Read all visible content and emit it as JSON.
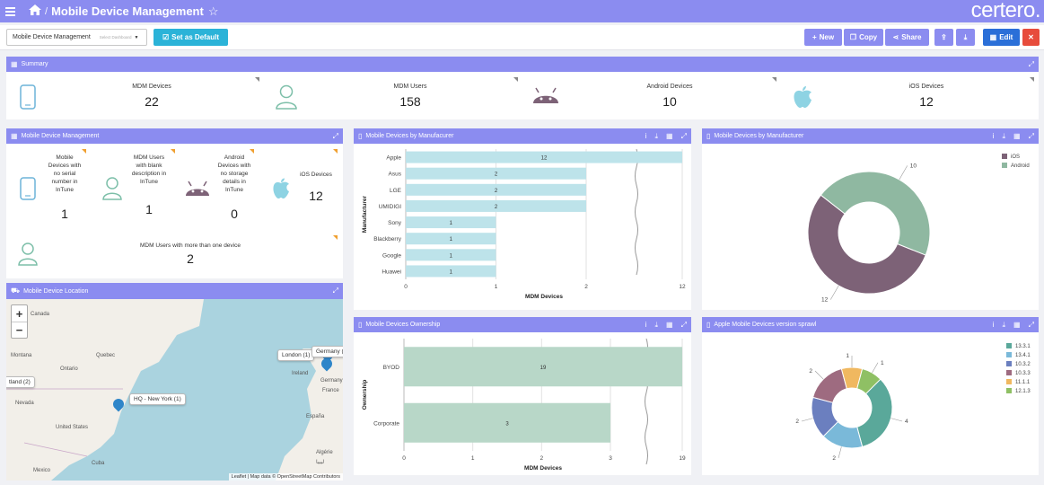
{
  "header": {
    "title": "Mobile Device Management",
    "logo": "certero."
  },
  "toolbar": {
    "dashboard_select": "Mobile Device Management",
    "dashboard_placeholder": "Select Dashboard",
    "set_default": "Set as Default",
    "new": "New",
    "copy": "Copy",
    "share": "Share",
    "edit": "Edit"
  },
  "summary": {
    "title": "Summary",
    "items": [
      {
        "label": "MDM Devices",
        "value": "22",
        "icon": "phone-icon"
      },
      {
        "label": "MDM Users",
        "value": "158",
        "icon": "user-icon"
      },
      {
        "label": "Android Devices",
        "value": "10",
        "icon": "android-icon"
      },
      {
        "label": "iOS Devices",
        "value": "12",
        "icon": "apple-icon"
      }
    ]
  },
  "mdm_panel": {
    "title": "Mobile Device Management",
    "items": [
      {
        "label": "Mobile Devices with no serial number in InTune",
        "value": "1"
      },
      {
        "label": "MDM Users with blank description in InTune",
        "value": "1"
      },
      {
        "label": "Android Devices with no storage details in InTune",
        "value": "0"
      },
      {
        "label": "iOS Devices",
        "value": "12"
      },
      {
        "label": "MDM Users with more than one device",
        "value": "2"
      }
    ]
  },
  "location_panel": {
    "title": "Mobile Device Location",
    "zoom_in": "+",
    "zoom_out": "−",
    "places": [
      "Canada",
      "Quebec",
      "Montana",
      "Ontario",
      "Nevada",
      "Mexico",
      "Cuba",
      "United States",
      "Ireland",
      "Germany",
      "France",
      "España",
      "Algérie",
      "ليبيا"
    ],
    "tooltips": [
      "London (1)",
      "Germany (",
      "HQ - New York (1)",
      "tland (2)"
    ],
    "attribution": "Leaflet | Map data © OpenStreetMap Contributors"
  },
  "colors": {
    "accent": "#8b8cf0",
    "bar_teal": "#bde3ea",
    "bar_green": "#b8d7c8",
    "ios": "#7d6277",
    "android": "#8fb8a1"
  },
  "charts_meta": {
    "manufacturer_bar_title": "Mobile Devices by Manufacurer",
    "manufacturer_pie_title": "Mobile Devices by Manufacturer",
    "ownership_title": "Mobile Devices Ownership",
    "ios_sprawl_title": "Apple Mobile Devices version sprawl"
  },
  "chart_data": [
    {
      "type": "bar",
      "orientation": "horizontal",
      "title": "Mobile Devices by Manufacurer",
      "categories": [
        "Apple",
        "Asus",
        "LGE",
        "UMIDIGI",
        "Sony",
        "Blackberry",
        "Google",
        "Huawei"
      ],
      "values": [
        12,
        2,
        2,
        2,
        1,
        1,
        1,
        1
      ],
      "xlabel": "MDM Devices",
      "ylabel": "Manufacturer",
      "xticks": [
        "0",
        "1",
        "2",
        "12"
      ],
      "axis_break": true
    },
    {
      "type": "pie",
      "donut": true,
      "title": "Mobile Devices by Manufacturer",
      "categories": [
        "iOS",
        "Android"
      ],
      "values": [
        12,
        10
      ],
      "legend": "top-right"
    },
    {
      "type": "bar",
      "orientation": "horizontal",
      "title": "Mobile Devices Ownership",
      "categories": [
        "BYOD",
        "Corporate"
      ],
      "values": [
        19,
        3
      ],
      "xlabel": "MDM Devices",
      "ylabel": "Ownership",
      "xticks": [
        "0",
        "1",
        "2",
        "3",
        "19"
      ],
      "axis_break": true
    },
    {
      "type": "pie",
      "donut": true,
      "title": "Apple Mobile Devices version sprawl",
      "categories": [
        "13.3.1",
        "13.4.1",
        "10.3.2",
        "10.3.3",
        "11.1.1",
        "12.1.3"
      ],
      "values": [
        4,
        2,
        2,
        2,
        1,
        1
      ],
      "colors": [
        "#5aa89a",
        "#7ab9d9",
        "#6b7fbf",
        "#9e6b80",
        "#f0b860",
        "#8fc064"
      ],
      "legend": "top-right"
    }
  ]
}
